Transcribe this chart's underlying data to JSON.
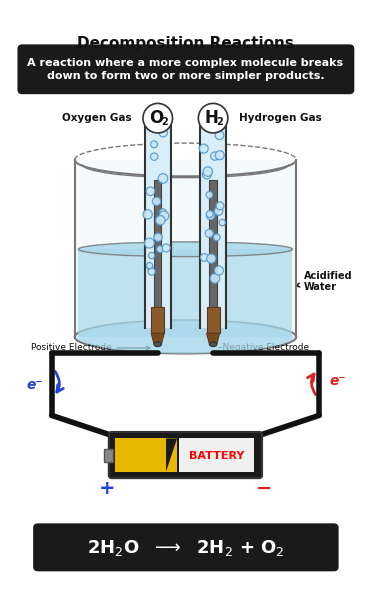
{
  "title": "Decomposition Reactions",
  "subtitle_line1": "A reaction where a more complex molecule breaks",
  "subtitle_line2": "down to form two or more simpler products.",
  "oxygen_label": "Oxygen Gas",
  "hydrogen_label": "Hydrogen Gas",
  "o2_label": "O",
  "h2_label": "H",
  "acidified_water_label": "Acidified\nWater",
  "positive_electrode": "Positive Electrode",
  "negative_electrode": "Negative Electrode",
  "battery_label": "BATTERY",
  "plus_label": "+",
  "minus_label": "−",
  "electron_label": "e⁻",
  "bg_color": "#ffffff",
  "subtitle_bg": "#1a1a1a",
  "subtitle_text_color": "#ffffff",
  "equation_bg": "#1a1a1a",
  "equation_text_color": "#ffffff",
  "water_color": "#a8d8ea",
  "bubble_color": "#5599cc",
  "beaker_edge_color": "#777777",
  "electrode_dark": "#555555",
  "electrode_brown": "#8b6040",
  "wire_color": "#111111",
  "battery_body_color": "#1a1a1a",
  "battery_yellow": "#e8b800",
  "battery_label_color": "#ff0000",
  "plus_color": "#2244dd",
  "minus_color": "#dd2222",
  "electron_left_color": "#2244dd",
  "electron_right_color": "#dd2222"
}
